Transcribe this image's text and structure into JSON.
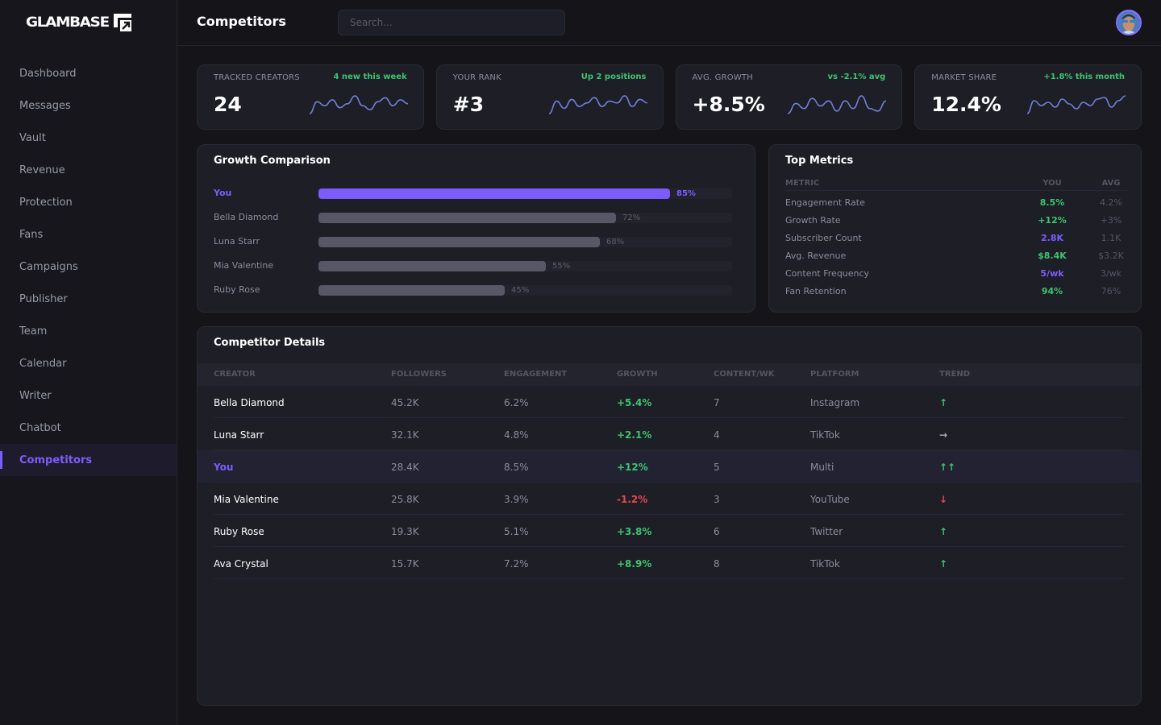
{
  "app": {
    "logo_text": "GLAMBASE",
    "colors": {
      "accent": "#7c5cff",
      "positive": "#3cc46e",
      "negative": "#e5484d",
      "background": "#141419",
      "card": "#1e1e27"
    }
  },
  "sidebar": {
    "items": [
      {
        "label": "Dashboard",
        "active": false
      },
      {
        "label": "Messages",
        "active": false
      },
      {
        "label": "Vault",
        "active": false
      },
      {
        "label": "Revenue",
        "active": false
      },
      {
        "label": "Protection",
        "active": false
      },
      {
        "label": "Fans",
        "active": false
      },
      {
        "label": "Campaigns",
        "active": false
      },
      {
        "label": "Publisher",
        "active": false
      },
      {
        "label": "Team",
        "active": false
      },
      {
        "label": "Calendar",
        "active": false
      },
      {
        "label": "Writer",
        "active": false
      },
      {
        "label": "Chatbot",
        "active": false
      },
      {
        "label": "Competitors",
        "active": true
      }
    ]
  },
  "header": {
    "title": "Competitors",
    "search_placeholder": "Search...",
    "avatar_icon": "user-avatar"
  },
  "stats": [
    {
      "label": "TRACKED CREATORS",
      "value": "24",
      "delta": "4 new this week",
      "sparkline": [
        2,
        8,
        6,
        9,
        5,
        7,
        11,
        6,
        4,
        8,
        10,
        6,
        9,
        7
      ]
    },
    {
      "label": "YOUR RANK",
      "value": "#3",
      "delta": "Up 2 positions",
      "sparkline": [
        1,
        8,
        4,
        9,
        5,
        7,
        10,
        5,
        8,
        7,
        11,
        5,
        9,
        7
      ]
    },
    {
      "label": "AVG. GROWTH",
      "value": "+8.5%",
      "delta": "vs -2.1% avg",
      "sparkline": [
        4,
        8,
        6,
        10,
        7,
        9,
        5,
        9,
        6,
        11,
        6,
        5,
        9
      ]
    },
    {
      "label": "MARKET SHARE",
      "value": "12.4%",
      "delta": "+1.8% this month",
      "sparkline": [
        1,
        9,
        6,
        8,
        5,
        10,
        7,
        4,
        8,
        6,
        10,
        11,
        5,
        9,
        12
      ]
    }
  ],
  "growth_comparison": {
    "title": "Growth Comparison",
    "rows": [
      {
        "name": "You",
        "value": 85,
        "label": "85%",
        "is_you": true
      },
      {
        "name": "Bella Diamond",
        "value": 72,
        "label": "72%",
        "is_you": false
      },
      {
        "name": "Luna Starr",
        "value": 68,
        "label": "68%",
        "is_you": false
      },
      {
        "name": "Mia Valentine",
        "value": 55,
        "label": "55%",
        "is_you": false
      },
      {
        "name": "Ruby Rose",
        "value": 45,
        "label": "45%",
        "is_you": false
      }
    ]
  },
  "top_metrics": {
    "title": "Top Metrics",
    "headers": {
      "metric": "METRIC",
      "you": "YOU",
      "avg": "AVG"
    },
    "rows": [
      {
        "name": "Engagement Rate",
        "you": "8.5%",
        "avg": "4.2%",
        "tone": "pos"
      },
      {
        "name": "Growth Rate",
        "you": "+12%",
        "avg": "+3%",
        "tone": "pos"
      },
      {
        "name": "Subscriber Count",
        "you": "2.8K",
        "avg": "1.1K",
        "tone": "purple"
      },
      {
        "name": "Avg. Revenue",
        "you": "$8.4K",
        "avg": "$3.2K",
        "tone": "pos"
      },
      {
        "name": "Content Frequency",
        "you": "5/wk",
        "avg": "3/wk",
        "tone": "purple"
      },
      {
        "name": "Fan Retention",
        "you": "94%",
        "avg": "76%",
        "tone": "pos"
      }
    ]
  },
  "competitor_details": {
    "title": "Competitor Details",
    "headers": [
      "CREATOR",
      "FOLLOWERS",
      "ENGAGEMENT",
      "GROWTH",
      "CONTENT/WK",
      "PLATFORM",
      "TREND"
    ],
    "rows": [
      {
        "creator": "Bella Diamond",
        "followers": "45.2K",
        "engagement": "6.2%",
        "growth": "+5.4%",
        "growth_tone": "pos",
        "content": "7",
        "platform": "Instagram",
        "trend": "↑",
        "trend_tone": "pos",
        "highlight": false
      },
      {
        "creator": "Luna Starr",
        "followers": "32.1K",
        "engagement": "4.8%",
        "growth": "+2.1%",
        "growth_tone": "pos",
        "content": "4",
        "platform": "TikTok",
        "trend": "→",
        "trend_tone": "neutral",
        "highlight": false
      },
      {
        "creator": "You",
        "followers": "28.4K",
        "engagement": "8.5%",
        "growth": "+12%",
        "growth_tone": "pos",
        "content": "5",
        "platform": "Multi",
        "trend": "↑↑",
        "trend_tone": "pos",
        "highlight": true
      },
      {
        "creator": "Mia Valentine",
        "followers": "25.8K",
        "engagement": "3.9%",
        "growth": "-1.2%",
        "growth_tone": "neg",
        "content": "3",
        "platform": "YouTube",
        "trend": "↓",
        "trend_tone": "neg",
        "highlight": false
      },
      {
        "creator": "Ruby Rose",
        "followers": "19.3K",
        "engagement": "5.1%",
        "growth": "+3.8%",
        "growth_tone": "pos",
        "content": "6",
        "platform": "Twitter",
        "trend": "↑",
        "trend_tone": "pos",
        "highlight": false
      },
      {
        "creator": "Ava Crystal",
        "followers": "15.7K",
        "engagement": "7.2%",
        "growth": "+8.9%",
        "growth_tone": "pos",
        "content": "8",
        "platform": "TikTok",
        "trend": "↑",
        "trend_tone": "pos",
        "highlight": false
      }
    ]
  }
}
